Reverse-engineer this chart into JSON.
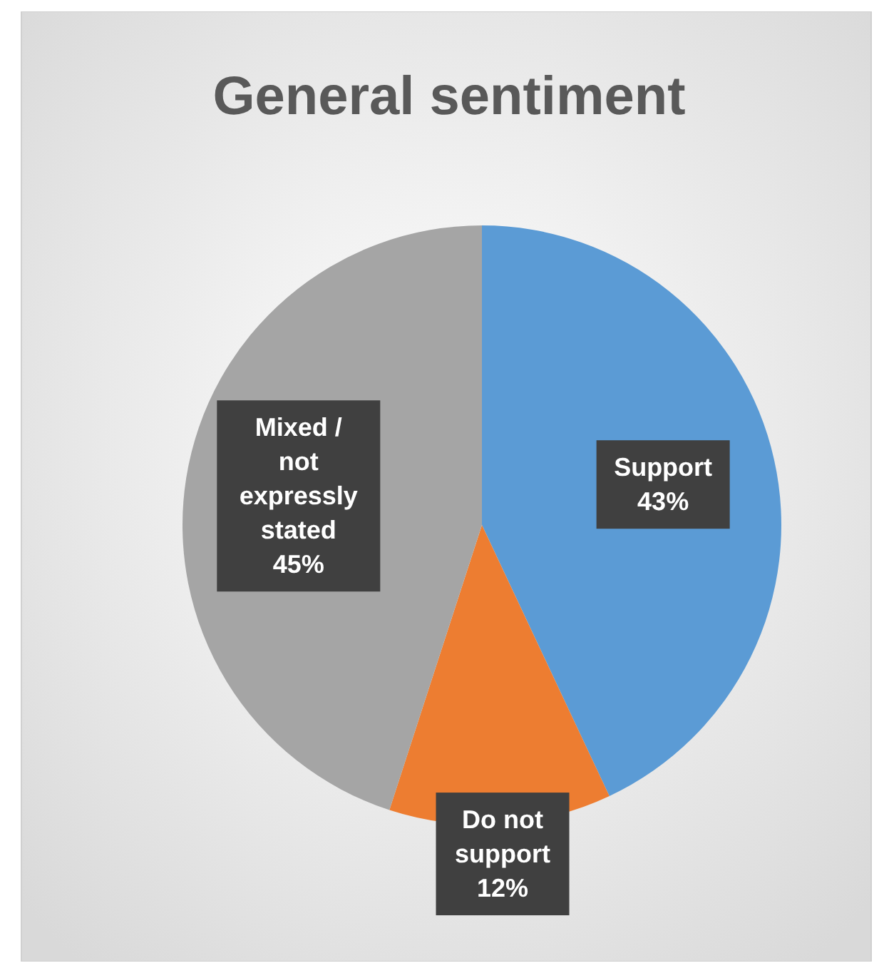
{
  "chart_data": {
    "type": "pie",
    "title": "General sentiment",
    "categories": [
      "Support",
      "Do not support",
      "Mixed / not expressly stated"
    ],
    "values": [
      43,
      12,
      45
    ],
    "value_labels": [
      "43%",
      "12%",
      "45%"
    ],
    "colors": [
      "#5b9bd5",
      "#ed7d31",
      "#a5a5a5"
    ]
  }
}
